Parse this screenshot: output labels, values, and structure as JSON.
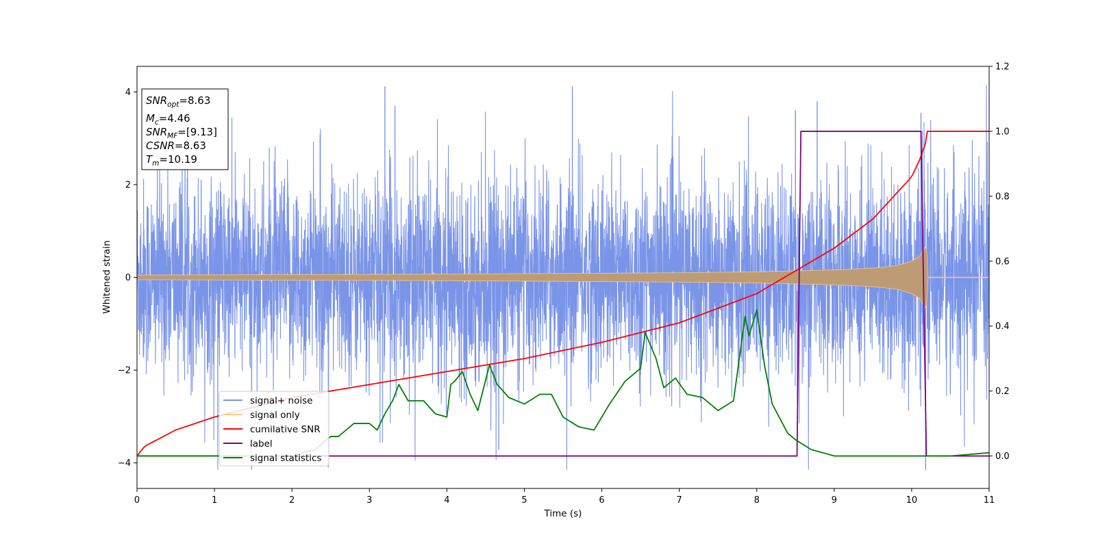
{
  "chart_data": {
    "type": "line",
    "xlabel": "Time (s)",
    "ylabel": "Whitened strain",
    "xlim": [
      0,
      11
    ],
    "ylim": [
      -4.55,
      4.55
    ],
    "y2lim": [
      -0.1,
      1.2
    ],
    "xticks": [
      "0",
      "1",
      "2",
      "3",
      "4",
      "5",
      "6",
      "7",
      "8",
      "9",
      "10",
      "11"
    ],
    "yticks": [
      "4",
      "2",
      "0",
      "−2",
      "−4"
    ],
    "y2ticks": [
      "1.2",
      "1.0",
      "0.8",
      "0.6",
      "0.4",
      "0.2",
      "0.0"
    ],
    "legend_position": "lower-left",
    "info_box": {
      "snr_opt": {
        "base": "SNR",
        "sub": "opt",
        "value": "=8.63"
      },
      "mc": {
        "base": "M",
        "sub": "c",
        "value": "=4.46"
      },
      "snr_mf": {
        "base": "SNR",
        "sub": "MF",
        "value": "=[9.13]"
      },
      "csnr": {
        "base": "CSNR",
        "value": "=8.63"
      },
      "tm": {
        "base": "T",
        "sub": "m",
        "value": "=10.19"
      }
    },
    "series": [
      {
        "name": "signal+ noise",
        "axis": "left",
        "color": "#7a94e8",
        "note_style": "dense whitened noise",
        "envelope": {
          "x": [
            0,
            11
          ],
          "rms": 1.05,
          "peak": [
            -4.15,
            4.15
          ]
        },
        "notable_peaks": [
          {
            "x": 3.2,
            "y": 4.12
          },
          {
            "x": 5.62,
            "y": 4.12
          },
          {
            "x": 3.33,
            "y": 3.7
          },
          {
            "x": 8.5,
            "y": 3.6
          },
          {
            "x": 8.78,
            "y": 3.8
          },
          {
            "x": 10.12,
            "y": 3.55
          },
          {
            "x": 10.18,
            "y": -4.15
          },
          {
            "x": 2.47,
            "y": -4.1
          },
          {
            "x": 4.67,
            "y": -3.72
          }
        ]
      },
      {
        "name": "signal only",
        "axis": "left",
        "color": "#f7c98a",
        "note_style": "chirp",
        "x": [
          0,
          1,
          2,
          3,
          4,
          5,
          6,
          7,
          8,
          9,
          9.5,
          9.8,
          10.0,
          10.1,
          10.19,
          10.21,
          11
        ],
        "amplitude": [
          0.05,
          0.055,
          0.06,
          0.065,
          0.07,
          0.08,
          0.09,
          0.1,
          0.12,
          0.16,
          0.2,
          0.25,
          0.35,
          0.45,
          0.7,
          0.0,
          0.0
        ]
      },
      {
        "name": "cumilative SNR",
        "axis": "right",
        "color": "#ff0000",
        "x": [
          0,
          0.1,
          0.5,
          1,
          2,
          3,
          4,
          5,
          6,
          7,
          8,
          8.5,
          9,
          9.5,
          10.0,
          10.1,
          10.19,
          10.2,
          11
        ],
        "values": [
          0.0,
          0.03,
          0.08,
          0.12,
          0.18,
          0.22,
          0.26,
          0.3,
          0.35,
          0.41,
          0.5,
          0.57,
          0.64,
          0.73,
          0.86,
          0.91,
          0.97,
          1.0,
          1.0
        ]
      },
      {
        "name": "label",
        "axis": "right",
        "color": "#800080",
        "x": [
          0,
          8.52,
          8.57,
          10.12,
          10.19,
          11
        ],
        "values": [
          0.0,
          0.0,
          1.0,
          1.0,
          0.0,
          0.0
        ]
      },
      {
        "name": "signal statistics",
        "axis": "right",
        "color": "#008000",
        "x": [
          0,
          1,
          2,
          2.3,
          2.5,
          2.6,
          2.8,
          3.0,
          3.1,
          3.2,
          3.3,
          3.38,
          3.5,
          3.7,
          3.85,
          4.0,
          4.05,
          4.1,
          4.2,
          4.3,
          4.4,
          4.55,
          4.65,
          4.8,
          5.0,
          5.2,
          5.35,
          5.5,
          5.7,
          5.9,
          6.1,
          6.3,
          6.5,
          6.56,
          6.7,
          6.8,
          6.95,
          7.1,
          7.3,
          7.5,
          7.7,
          7.85,
          7.9,
          8.0,
          8.1,
          8.2,
          8.4,
          8.5,
          8.7,
          9.0,
          9.5,
          10.0,
          10.5,
          11
        ],
        "values": [
          0.0,
          0.0,
          0.0,
          0.02,
          0.06,
          0.06,
          0.1,
          0.1,
          0.08,
          0.13,
          0.17,
          0.22,
          0.17,
          0.17,
          0.13,
          0.12,
          0.22,
          0.23,
          0.26,
          0.19,
          0.14,
          0.28,
          0.22,
          0.18,
          0.16,
          0.19,
          0.19,
          0.12,
          0.09,
          0.08,
          0.16,
          0.23,
          0.27,
          0.38,
          0.3,
          0.21,
          0.24,
          0.19,
          0.18,
          0.14,
          0.17,
          0.43,
          0.37,
          0.45,
          0.28,
          0.16,
          0.07,
          0.05,
          0.02,
          0.0,
          0.0,
          0.0,
          0.0,
          0.01
        ]
      }
    ]
  }
}
